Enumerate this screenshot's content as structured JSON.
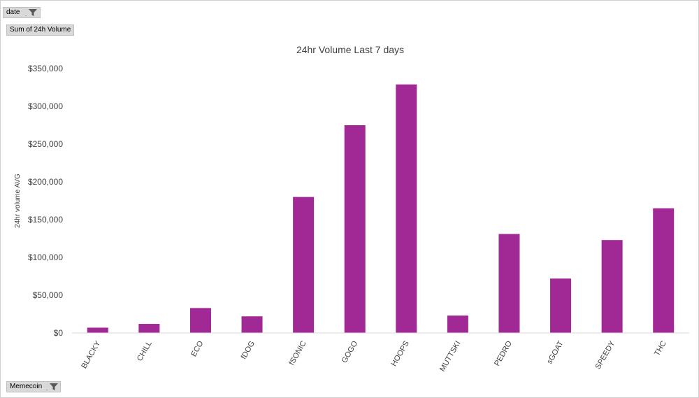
{
  "pivot": {
    "filter_field": "date",
    "value_field": "Sum of 24h Volume",
    "axis_field": "Memecoin",
    "filter_icon": "funnel-filter-icon"
  },
  "colors": {
    "bar": "#A12995",
    "axis": "#d9d9d9",
    "text": "#404040"
  },
  "chart_data": {
    "type": "bar",
    "title": "24hr Volume Last 7 days",
    "xlabel": "",
    "ylabel": "24hr volume AVG",
    "categories": [
      "BLACKY",
      "CHILL",
      "ECO",
      "fDOG",
      "fSONIC",
      "GOGO",
      "HOOPS",
      "MUTTSKI",
      "PEDRO",
      "sGOAT",
      "SPEEDY",
      "THC"
    ],
    "values": [
      7000,
      12000,
      33000,
      22000,
      180000,
      275000,
      329000,
      23000,
      131000,
      72000,
      123000,
      165000
    ],
    "ylim": [
      0,
      350000
    ],
    "yticks": [
      0,
      50000,
      100000,
      150000,
      200000,
      250000,
      300000,
      350000
    ],
    "ytick_labels": [
      "$0",
      "$50,000",
      "$100,000",
      "$150,000",
      "$200,000",
      "$250,000",
      "$300,000",
      "$350,000"
    ],
    "grid": false,
    "legend": "none"
  }
}
